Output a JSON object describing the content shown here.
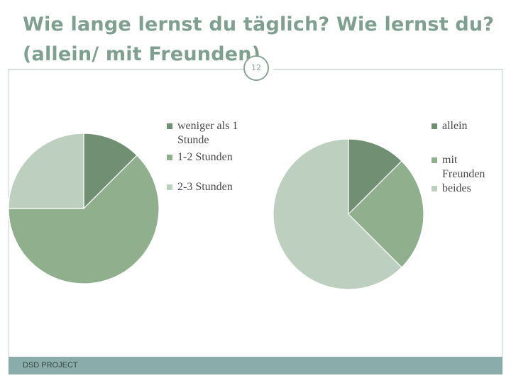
{
  "slide": {
    "title": "Wie lange lernst du täglich? Wie lernst du? (allein/ mit Freunden)",
    "number": "12",
    "footer": "DSD PROJECT"
  },
  "chart_data": [
    {
      "type": "pie",
      "categories": [
        "weniger als 1 Stunde",
        "1-2 Stunden",
        "2-3 Stunden"
      ],
      "values": [
        12.5,
        62.5,
        25
      ],
      "colors": [
        "#718f73",
        "#8faf8d",
        "#bdd0bf"
      ],
      "start_angle": 0,
      "legend_position": "right"
    },
    {
      "type": "pie",
      "categories": [
        "allein",
        "mit Freunden",
        "beides"
      ],
      "values": [
        12.5,
        25,
        62.5
      ],
      "colors": [
        "#718f73",
        "#8faf8d",
        "#bdd0bf"
      ],
      "start_angle": 0,
      "legend_position": "right"
    }
  ]
}
